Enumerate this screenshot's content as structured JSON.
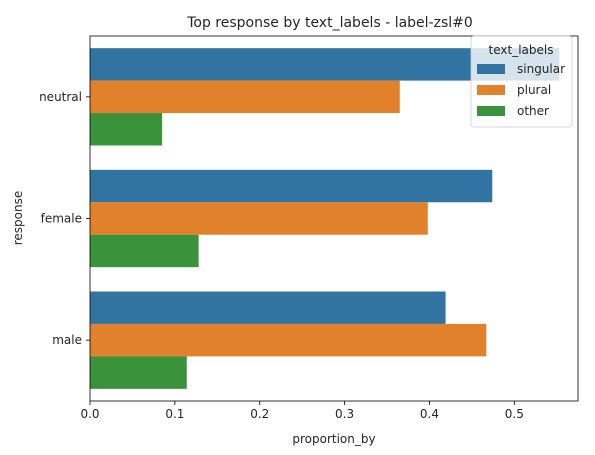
{
  "chart_data": {
    "type": "bar",
    "orientation": "horizontal",
    "title": "Top  response by text_labels - label-zsl#0",
    "xlabel": "proportion_by",
    "ylabel": "response",
    "categories": [
      "neutral",
      "female",
      "male"
    ],
    "xlim": [
      0,
      0.575
    ],
    "xticks": [
      "0.0",
      "0.1",
      "0.2",
      "0.3",
      "0.4",
      "0.5"
    ],
    "grid": false,
    "legend": {
      "title": "text_labels",
      "placement": "top-right"
    },
    "series": [
      {
        "name": "singular",
        "color": "#3274a1",
        "values": [
          0.553,
          0.474,
          0.419
        ]
      },
      {
        "name": "plural",
        "color": "#e1812c",
        "values": [
          0.365,
          0.398,
          0.467
        ]
      },
      {
        "name": "other",
        "color": "#3a923a",
        "values": [
          0.085,
          0.128,
          0.114
        ]
      }
    ]
  }
}
